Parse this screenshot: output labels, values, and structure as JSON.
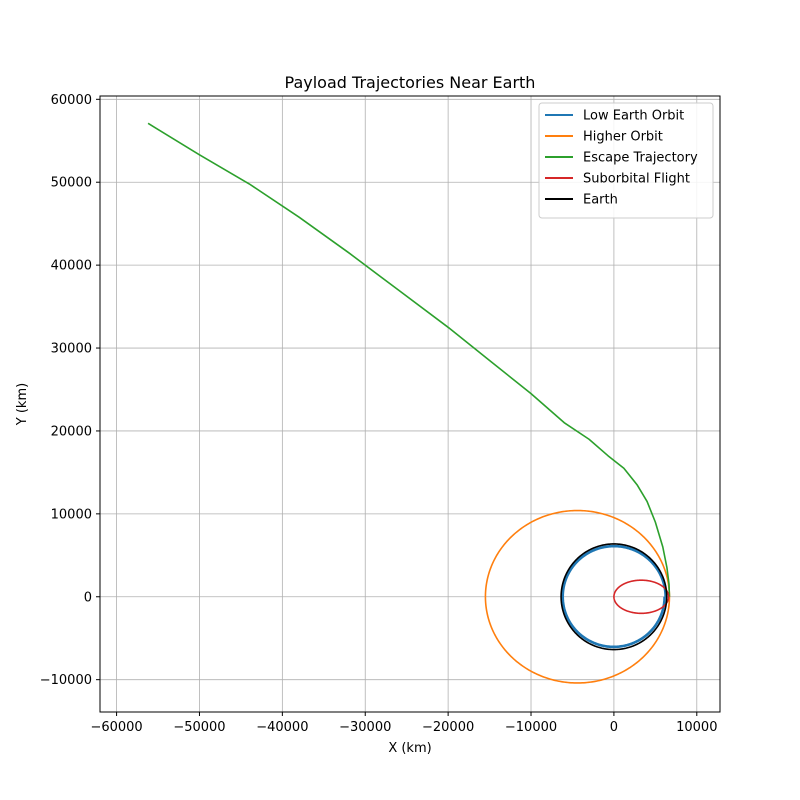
{
  "chart_data": {
    "type": "line",
    "title": "Payload Trajectories Near Earth",
    "xlabel": "X (km)",
    "ylabel": "Y (km)",
    "xlim": [
      -62000,
      12800
    ],
    "ylim": [
      -13900,
      60400
    ],
    "xticks": [
      -60000,
      -50000,
      -40000,
      -30000,
      -20000,
      -10000,
      0,
      10000
    ],
    "yticks": [
      -10000,
      0,
      10000,
      20000,
      30000,
      40000,
      50000,
      60000
    ],
    "xtick_labels": [
      "−60000",
      "−50000",
      "−40000",
      "−30000",
      "−20000",
      "−10000",
      "0",
      "10000"
    ],
    "ytick_labels": [
      "−10000",
      "0",
      "10000",
      "20000",
      "30000",
      "40000",
      "50000",
      "60000"
    ],
    "grid": true,
    "legend_position": "top-right",
    "series": [
      {
        "name": "Low Earth Orbit",
        "color": "#1f77b4",
        "kind": "ellipse",
        "center": [
          0,
          0
        ],
        "a": 6300,
        "b": 6200,
        "loops": 2
      },
      {
        "name": "Higher Orbit",
        "color": "#ff7f0e",
        "kind": "ellipse",
        "center": [
          -4400,
          0
        ],
        "a": 11100,
        "b": 10400,
        "loops": 1
      },
      {
        "name": "Escape Trajectory",
        "color": "#2ca02c",
        "kind": "polyline",
        "x": [
          6700,
          6650,
          6400,
          5900,
          5000,
          4000,
          2800,
          1200,
          -700,
          -3000,
          -6000,
          -10000,
          -15000,
          -20000,
          -26000,
          -32000,
          -38000,
          -44000,
          -50000,
          -56200
        ],
        "y": [
          0,
          1500,
          3500,
          6000,
          9000,
          11500,
          13500,
          15500,
          17000,
          19000,
          21000,
          24500,
          28500,
          32500,
          37000,
          41500,
          45800,
          49800,
          53300,
          57100
        ]
      },
      {
        "name": "Suborbital Flight",
        "color": "#d62728",
        "kind": "ellipse",
        "center": [
          3300,
          0
        ],
        "a": 3300,
        "b": 2000,
        "loops": 1
      },
      {
        "name": "Earth",
        "color": "#000000",
        "kind": "ellipse",
        "center": [
          0,
          0
        ],
        "a": 6371,
        "b": 6371,
        "loops": 1
      }
    ]
  }
}
